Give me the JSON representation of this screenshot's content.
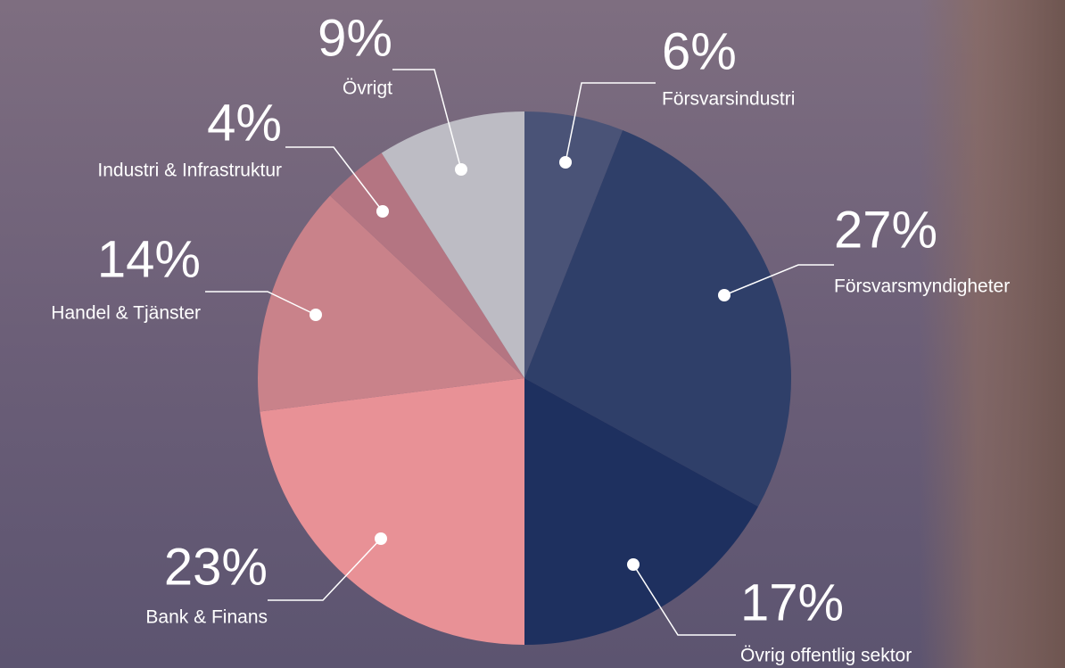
{
  "chart_data": {
    "type": "pie",
    "categories": [
      "Försvarsindustri",
      "Försvarsmyndigheter",
      "Övrig offentlig sektor",
      "Bank & Finans",
      "Handel & Tjänster",
      "Industri & Infrastruktur",
      "Övrigt"
    ],
    "values": [
      6,
      27,
      17,
      23,
      14,
      4,
      9
    ],
    "value_labels": [
      "6%",
      "27%",
      "17%",
      "23%",
      "14%",
      "4%",
      "9%"
    ],
    "colors": [
      "#4a5377",
      "#2f3f69",
      "#1e305f",
      "#e89196",
      "#c9828a",
      "#b47582",
      "#bdbcc4"
    ]
  }
}
